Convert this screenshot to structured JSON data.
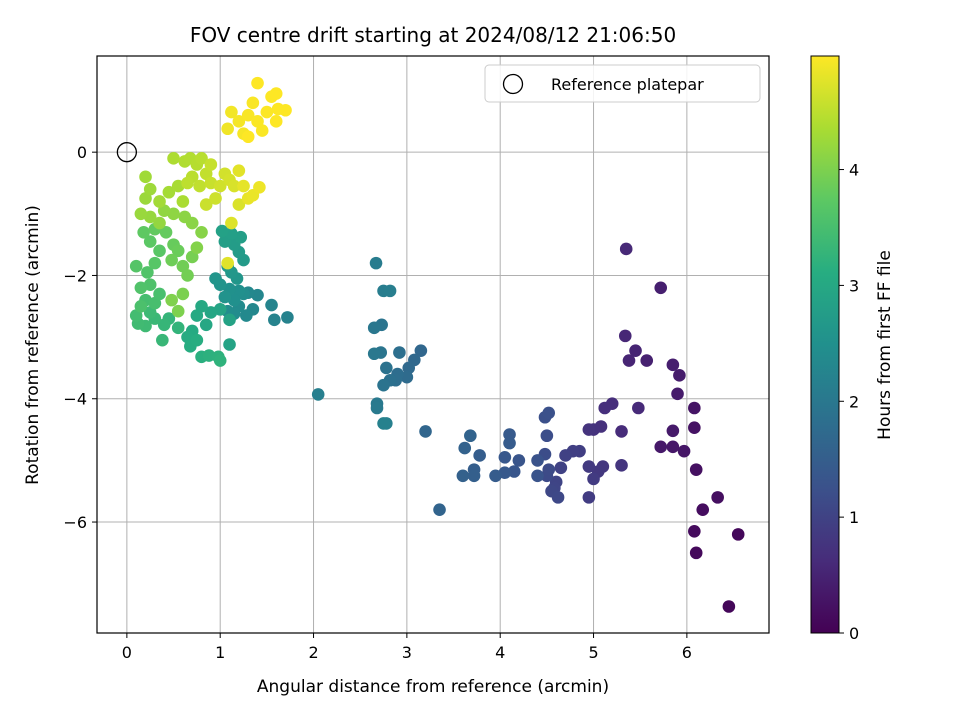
{
  "chart_data": {
    "type": "scatter",
    "title": "FOV centre drift starting at 2024/08/12 21:06:50",
    "xlabel": "Angular distance from reference (arcmin)",
    "ylabel": "Rotation from reference (arcmin)",
    "xlim": [
      -0.32,
      6.88
    ],
    "ylim": [
      -7.8,
      1.56
    ],
    "xticks": [
      0,
      1,
      2,
      3,
      4,
      5,
      6
    ],
    "yticks": [
      0,
      -2,
      -4,
      -6
    ],
    "grid": true,
    "legend": {
      "position": "top-right",
      "entries": [
        "Reference platepar"
      ]
    },
    "reference_marker": {
      "x": 0,
      "y": 0
    },
    "colorbar": {
      "label": "Hours from first FF file",
      "range": [
        0,
        4.98
      ],
      "ticks": [
        0,
        1,
        2,
        3,
        4
      ],
      "colormap": "viridis"
    },
    "points": [
      [
        6.45,
        -7.37,
        0.08
      ],
      [
        6.55,
        -6.2,
        0.1
      ],
      [
        6.1,
        -6.5,
        0.12
      ],
      [
        6.08,
        -6.15,
        0.15
      ],
      [
        6.17,
        -5.8,
        0.18
      ],
      [
        6.33,
        -5.6,
        0.2
      ],
      [
        6.1,
        -5.15,
        0.22
      ],
      [
        6.08,
        -4.47,
        0.25
      ],
      [
        6.08,
        -4.15,
        0.28
      ],
      [
        5.97,
        -4.85,
        0.3
      ],
      [
        5.85,
        -4.78,
        0.32
      ],
      [
        5.72,
        -4.78,
        0.34
      ],
      [
        5.85,
        -4.52,
        0.36
      ],
      [
        5.9,
        -3.92,
        0.38
      ],
      [
        5.92,
        -3.62,
        0.4
      ],
      [
        5.85,
        -3.45,
        0.42
      ],
      [
        5.72,
        -2.2,
        0.44
      ],
      [
        5.57,
        -3.38,
        0.46
      ],
      [
        5.45,
        -3.22,
        0.5
      ],
      [
        5.38,
        -3.38,
        0.52
      ],
      [
        5.34,
        -2.98,
        0.55
      ],
      [
        5.35,
        -1.57,
        0.58
      ],
      [
        5.48,
        -4.15,
        0.6
      ],
      [
        5.3,
        -4.53,
        0.62
      ],
      [
        5.2,
        -4.08,
        0.65
      ],
      [
        5.12,
        -4.15,
        0.68
      ],
      [
        5.08,
        -4.45,
        0.7
      ],
      [
        5.0,
        -4.5,
        0.72
      ],
      [
        4.95,
        -4.5,
        0.75
      ],
      [
        5.3,
        -5.08,
        0.78
      ],
      [
        5.1,
        -5.1,
        0.8
      ],
      [
        5.05,
        -5.18,
        0.82
      ],
      [
        4.95,
        -5.1,
        0.85
      ],
      [
        5.0,
        -5.3,
        0.88
      ],
      [
        4.95,
        -5.6,
        0.9
      ],
      [
        4.85,
        -4.85,
        0.92
      ],
      [
        4.78,
        -4.85,
        0.95
      ],
      [
        4.7,
        -4.92,
        0.98
      ],
      [
        4.65,
        -5.12,
        1.0
      ],
      [
        4.6,
        -5.35,
        1.02
      ],
      [
        4.58,
        -5.45,
        1.05
      ],
      [
        4.55,
        -5.5,
        1.08
      ],
      [
        4.62,
        -5.6,
        1.1
      ],
      [
        4.5,
        -5.25,
        1.12
      ],
      [
        4.52,
        -5.15,
        1.15
      ],
      [
        4.48,
        -4.9,
        1.18
      ],
      [
        4.5,
        -4.6,
        1.2
      ],
      [
        4.48,
        -4.3,
        1.22
      ],
      [
        4.52,
        -4.23,
        1.25
      ],
      [
        4.4,
        -5.0,
        1.28
      ],
      [
        4.4,
        -5.25,
        1.3
      ],
      [
        4.2,
        -5.0,
        1.32
      ],
      [
        4.15,
        -5.18,
        1.35
      ],
      [
        4.05,
        -4.95,
        1.38
      ],
      [
        4.05,
        -5.2,
        1.4
      ],
      [
        4.1,
        -4.58,
        1.42
      ],
      [
        4.1,
        -4.72,
        1.44
      ],
      [
        3.95,
        -5.25,
        1.46
      ],
      [
        3.78,
        -4.92,
        1.48
      ],
      [
        3.72,
        -5.15,
        1.5
      ],
      [
        3.72,
        -5.25,
        1.52
      ],
      [
        3.6,
        -5.25,
        1.55
      ],
      [
        3.62,
        -4.8,
        1.58
      ],
      [
        3.68,
        -4.6,
        1.6
      ],
      [
        3.35,
        -5.8,
        1.62
      ],
      [
        3.2,
        -4.53,
        1.65
      ],
      [
        3.15,
        -3.22,
        1.68
      ],
      [
        3.08,
        -3.37,
        1.7
      ],
      [
        3.02,
        -3.5,
        1.72
      ],
      [
        3.0,
        -3.65,
        1.75
      ],
      [
        2.9,
        -3.6,
        1.78
      ],
      [
        2.88,
        -3.7,
        1.8
      ],
      [
        2.92,
        -3.25,
        1.82
      ],
      [
        2.82,
        -3.7,
        1.85
      ],
      [
        2.78,
        -3.5,
        1.88
      ],
      [
        2.75,
        -3.78,
        1.9
      ],
      [
        2.73,
        -2.8,
        1.92
      ],
      [
        2.72,
        -3.25,
        1.95
      ],
      [
        2.65,
        -2.85,
        1.98
      ],
      [
        2.65,
        -3.27,
        2.0
      ],
      [
        2.68,
        -4.08,
        2.02
      ],
      [
        2.68,
        -4.15,
        2.05
      ],
      [
        2.67,
        -1.8,
        2.08
      ],
      [
        2.75,
        -2.25,
        2.1
      ],
      [
        2.82,
        -2.25,
        2.12
      ],
      [
        2.05,
        -3.93,
        2.14
      ],
      [
        2.78,
        -4.4,
        2.16
      ],
      [
        2.75,
        -4.4,
        2.18
      ],
      [
        1.72,
        -2.68,
        2.2
      ],
      [
        1.58,
        -2.72,
        2.22
      ],
      [
        1.55,
        -2.48,
        2.25
      ],
      [
        1.4,
        -2.32,
        2.28
      ],
      [
        1.35,
        -2.55,
        2.3
      ],
      [
        1.3,
        -2.28,
        2.32
      ],
      [
        1.28,
        -2.65,
        2.35
      ],
      [
        1.2,
        -2.5,
        2.38
      ],
      [
        1.15,
        -2.62,
        2.4
      ],
      [
        1.08,
        -2.58,
        2.42
      ],
      [
        1.25,
        -2.3,
        2.45
      ],
      [
        1.2,
        -2.25,
        2.48
      ],
      [
        1.15,
        -2.4,
        2.5
      ],
      [
        1.1,
        -2.22,
        2.52
      ],
      [
        1.05,
        -2.35,
        2.55
      ],
      [
        1.0,
        -2.15,
        2.58
      ],
      [
        0.95,
        -2.05,
        2.6
      ],
      [
        1.18,
        -2.05,
        2.62
      ],
      [
        1.12,
        -1.95,
        2.65
      ],
      [
        1.08,
        -1.85,
        2.68
      ],
      [
        1.25,
        -1.75,
        2.7
      ],
      [
        1.2,
        -1.62,
        2.72
      ],
      [
        1.15,
        -1.5,
        2.75
      ],
      [
        1.05,
        -1.45,
        2.78
      ],
      [
        1.22,
        -1.38,
        2.8
      ],
      [
        1.12,
        -1.32,
        2.82
      ],
      [
        1.02,
        -1.28,
        2.85
      ],
      [
        1.1,
        -2.72,
        2.88
      ],
      [
        1.1,
        -3.12,
        2.9
      ],
      [
        1.0,
        -2.55,
        2.92
      ],
      [
        0.9,
        -2.6,
        2.95
      ],
      [
        0.85,
        -2.8,
        2.98
      ],
      [
        0.8,
        -2.5,
        3.0
      ],
      [
        0.75,
        -2.65,
        3.02
      ],
      [
        0.7,
        -2.9,
        3.05
      ],
      [
        0.65,
        -3.0,
        3.08
      ],
      [
        0.68,
        -3.15,
        3.1
      ],
      [
        0.75,
        -3.05,
        3.12
      ],
      [
        0.8,
        -3.32,
        3.15
      ],
      [
        0.88,
        -3.3,
        3.18
      ],
      [
        0.98,
        -3.32,
        3.2
      ],
      [
        1.0,
        -3.38,
        3.22
      ],
      [
        0.55,
        -2.85,
        3.25
      ],
      [
        0.45,
        -2.7,
        3.28
      ],
      [
        0.4,
        -2.8,
        3.3
      ],
      [
        0.38,
        -3.05,
        3.32
      ],
      [
        0.3,
        -2.7,
        3.35
      ],
      [
        0.25,
        -2.6,
        3.38
      ],
      [
        0.2,
        -2.82,
        3.4
      ],
      [
        0.12,
        -2.78,
        3.42
      ],
      [
        0.1,
        -2.65,
        3.45
      ],
      [
        0.2,
        -2.4,
        3.48
      ],
      [
        0.3,
        -2.45,
        3.5
      ],
      [
        0.35,
        -2.3,
        3.52
      ],
      [
        0.15,
        -2.5,
        3.55
      ],
      [
        0.25,
        -2.15,
        3.58
      ],
      [
        0.15,
        -2.2,
        3.6
      ],
      [
        0.22,
        -1.95,
        3.62
      ],
      [
        0.1,
        -1.85,
        3.65
      ],
      [
        0.3,
        -1.8,
        3.68
      ],
      [
        0.35,
        -1.6,
        3.7
      ],
      [
        0.25,
        -1.45,
        3.72
      ],
      [
        0.18,
        -1.3,
        3.75
      ],
      [
        0.3,
        -1.25,
        3.78
      ],
      [
        0.42,
        -1.3,
        3.8
      ],
      [
        0.5,
        -1.5,
        3.82
      ],
      [
        0.55,
        -1.6,
        3.85
      ],
      [
        0.48,
        -1.75,
        3.88
      ],
      [
        0.6,
        -1.85,
        3.9
      ],
      [
        0.65,
        -2.0,
        3.92
      ],
      [
        0.7,
        -1.7,
        3.95
      ],
      [
        0.6,
        -2.3,
        3.98
      ],
      [
        0.55,
        -2.58,
        4.0
      ],
      [
        0.48,
        -2.4,
        4.02
      ],
      [
        0.75,
        -1.55,
        4.05
      ],
      [
        0.8,
        -1.3,
        4.08
      ],
      [
        0.7,
        -1.15,
        4.1
      ],
      [
        0.62,
        -1.05,
        4.12
      ],
      [
        0.5,
        -1.0,
        4.14
      ],
      [
        0.4,
        -0.95,
        4.16
      ],
      [
        0.35,
        -1.15,
        4.18
      ],
      [
        0.25,
        -1.05,
        4.2
      ],
      [
        0.15,
        -1.0,
        4.22
      ],
      [
        0.2,
        -0.75,
        4.24
      ],
      [
        0.25,
        -0.6,
        4.26
      ],
      [
        0.2,
        -0.4,
        4.28
      ],
      [
        0.35,
        -0.8,
        4.3
      ],
      [
        0.45,
        -0.65,
        4.32
      ],
      [
        0.55,
        -0.55,
        4.34
      ],
      [
        0.6,
        -0.8,
        4.36
      ],
      [
        0.5,
        -0.1,
        4.38
      ],
      [
        0.62,
        -0.15,
        4.4
      ],
      [
        0.68,
        -0.1,
        4.42
      ],
      [
        0.75,
        -0.2,
        4.44
      ],
      [
        0.8,
        -0.1,
        4.46
      ],
      [
        0.7,
        -0.4,
        4.48
      ],
      [
        0.65,
        -0.5,
        4.5
      ],
      [
        0.78,
        -0.55,
        4.52
      ],
      [
        0.85,
        -0.35,
        4.54
      ],
      [
        0.9,
        -0.2,
        4.56
      ],
      [
        0.9,
        -0.5,
        4.58
      ],
      [
        0.85,
        -0.85,
        4.6
      ],
      [
        0.95,
        -0.75,
        4.62
      ],
      [
        1.0,
        -0.55,
        4.64
      ],
      [
        1.05,
        -0.35,
        4.66
      ],
      [
        1.1,
        -0.45,
        4.68
      ],
      [
        1.15,
        -0.55,
        4.7
      ],
      [
        1.2,
        -0.85,
        4.72
      ],
      [
        1.12,
        -1.15,
        4.74
      ],
      [
        1.08,
        -1.8,
        4.76
      ],
      [
        1.2,
        -0.3,
        4.78
      ],
      [
        1.25,
        -0.55,
        4.8
      ],
      [
        1.3,
        -0.75,
        4.82
      ],
      [
        1.35,
        -0.7,
        4.84
      ],
      [
        1.42,
        -0.57,
        4.86
      ],
      [
        1.08,
        0.38,
        4.88
      ],
      [
        1.12,
        0.65,
        4.9
      ],
      [
        1.2,
        0.5,
        4.92
      ],
      [
        1.25,
        0.3,
        4.93
      ],
      [
        1.3,
        0.6,
        4.94
      ],
      [
        1.35,
        0.8,
        4.95
      ],
      [
        1.4,
        0.5,
        4.96
      ],
      [
        1.45,
        0.35,
        4.96
      ],
      [
        1.5,
        0.65,
        4.97
      ],
      [
        1.55,
        0.9,
        4.97
      ],
      [
        1.6,
        0.95,
        4.98
      ],
      [
        1.62,
        0.7,
        4.98
      ],
      [
        1.4,
        1.12,
        4.98
      ],
      [
        1.7,
        0.68,
        4.98
      ],
      [
        1.6,
        0.5,
        4.98
      ],
      [
        1.3,
        0.25,
        4.98
      ]
    ]
  }
}
